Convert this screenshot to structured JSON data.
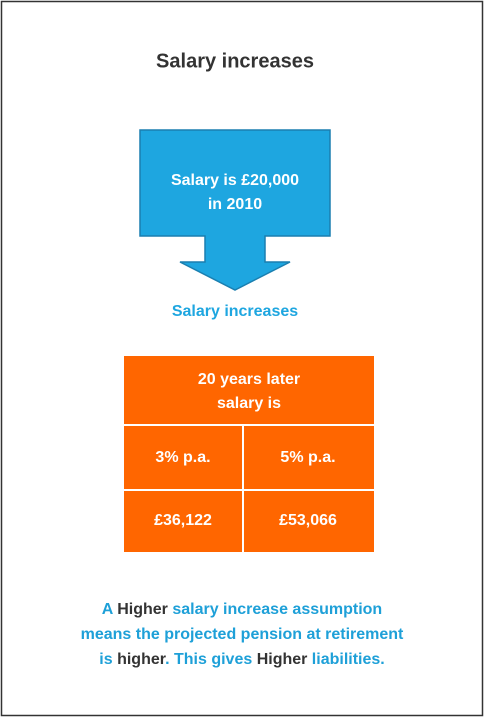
{
  "title": "Salary increases",
  "start": {
    "lines": [
      "Salary is £20,000",
      "in 2010"
    ]
  },
  "step_label": "Salary increases",
  "table": {
    "header": [
      "20 years later",
      "salary is"
    ],
    "rows": [
      [
        "3% p.a.",
        "5% p.a."
      ],
      [
        "£36,122",
        "£53,066"
      ]
    ]
  },
  "conclusion": [
    [
      {
        "text": "A ",
        "emphasis": false
      },
      {
        "text": "Higher",
        "emphasis": true
      },
      {
        "text": " salary increase assumption",
        "emphasis": false
      }
    ],
    [
      {
        "text": "means the projected pension at retirement",
        "emphasis": false
      }
    ],
    [
      {
        "text": "is ",
        "emphasis": false
      },
      {
        "text": "higher",
        "emphasis": true
      },
      {
        "text": ". This gives ",
        "emphasis": false
      },
      {
        "text": "Higher",
        "emphasis": true
      },
      {
        "text": " liabilities.",
        "emphasis": false
      }
    ]
  ]
}
